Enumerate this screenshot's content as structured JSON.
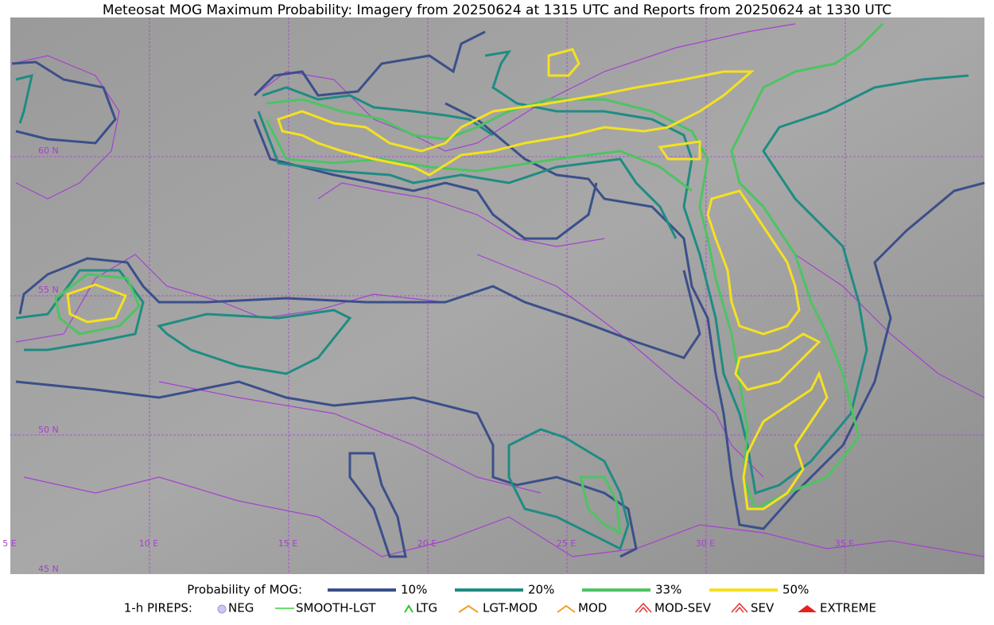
{
  "header": {
    "title": "Meteosat MOG Maximum Probability: Imagery from 20250624 at 1315 UTC and Reports from 20250624 at 1330 UTC"
  },
  "map": {
    "lat_labels": [
      "60 N",
      "55 N",
      "50 N",
      "45 N"
    ],
    "lon_labels": [
      "5 E",
      "10 E",
      "15 E",
      "20 E",
      "25 E",
      "30 E",
      "35 E"
    ]
  },
  "legend": {
    "probability_title": "Probability of MOG:",
    "probability_levels": [
      "10%",
      "20%",
      "33%",
      "50%"
    ],
    "pireps_title": "1-h PIREPS:",
    "pireps": [
      "NEG",
      "SMOOTH-LGT",
      "LTG",
      "LGT-MOD",
      "MOD",
      "MOD-SEV",
      "SEV",
      "EXTREME"
    ]
  }
}
